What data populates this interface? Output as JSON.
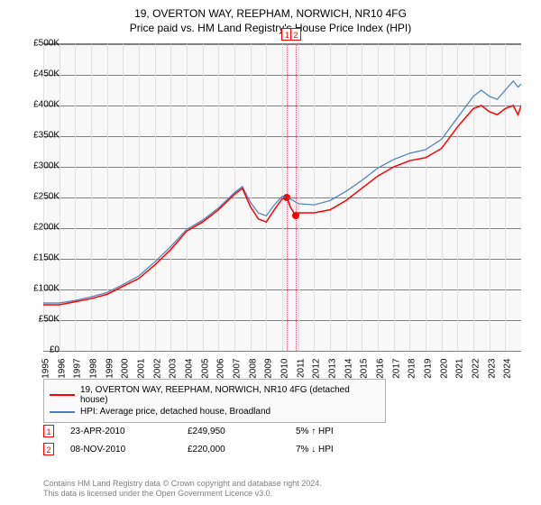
{
  "title": "19, OVERTON WAY, REEPHAM, NORWICH, NR10 4FG",
  "subtitle": "Price paid vs. HM Land Registry's House Price Index (HPI)",
  "chart": {
    "type": "line",
    "background_color": "#f8f8f8",
    "grid_color": "#808080",
    "x_years": [
      1995,
      1996,
      1997,
      1998,
      1999,
      2000,
      2001,
      2002,
      2003,
      2004,
      2005,
      2006,
      2007,
      2008,
      2009,
      2010,
      2011,
      2012,
      2013,
      2014,
      2015,
      2016,
      2017,
      2018,
      2019,
      2020,
      2021,
      2022,
      2023,
      2024
    ],
    "xlim_min": 1995,
    "xlim_max": 2025,
    "y_ticks": [
      0,
      50000,
      100000,
      150000,
      200000,
      250000,
      300000,
      350000,
      400000,
      450000,
      500000
    ],
    "y_labels": [
      "£0",
      "£50K",
      "£100K",
      "£150K",
      "£200K",
      "£250K",
      "£300K",
      "£350K",
      "£400K",
      "£450K",
      "£500K"
    ],
    "ylim_min": 0,
    "ylim_max": 500000,
    "label_fontsize": 10,
    "series_red": {
      "color": "#ff0000",
      "line_width": 1.5,
      "label": "19, OVERTON WAY, REEPHAM, NORWICH, NR10 4FG (detached house)",
      "points": [
        [
          1995,
          75000
        ],
        [
          1996,
          75000
        ],
        [
          1997,
          80000
        ],
        [
          1998,
          85000
        ],
        [
          1999,
          92000
        ],
        [
          2000,
          105000
        ],
        [
          2001,
          118000
        ],
        [
          2002,
          140000
        ],
        [
          2003,
          165000
        ],
        [
          2004,
          195000
        ],
        [
          2005,
          210000
        ],
        [
          2006,
          230000
        ],
        [
          2007,
          255000
        ],
        [
          2007.5,
          265000
        ],
        [
          2008,
          235000
        ],
        [
          2008.5,
          215000
        ],
        [
          2009,
          210000
        ],
        [
          2009.5,
          230000
        ],
        [
          2010,
          248000
        ],
        [
          2010.3,
          249950
        ],
        [
          2010.5,
          235000
        ],
        [
          2010.85,
          220000
        ],
        [
          2011,
          225000
        ],
        [
          2012,
          225000
        ],
        [
          2013,
          230000
        ],
        [
          2014,
          245000
        ],
        [
          2015,
          265000
        ],
        [
          2016,
          285000
        ],
        [
          2017,
          300000
        ],
        [
          2018,
          310000
        ],
        [
          2019,
          315000
        ],
        [
          2020,
          330000
        ],
        [
          2021,
          365000
        ],
        [
          2022,
          395000
        ],
        [
          2022.5,
          400000
        ],
        [
          2023,
          390000
        ],
        [
          2023.5,
          385000
        ],
        [
          2024,
          395000
        ],
        [
          2024.5,
          400000
        ],
        [
          2024.8,
          385000
        ],
        [
          2025,
          400000
        ]
      ]
    },
    "series_blue": {
      "color": "#4a7ebb",
      "line_width": 1.2,
      "label": "HPI: Average price, detached house, Broadland",
      "points": [
        [
          1995,
          78000
        ],
        [
          1996,
          78000
        ],
        [
          1997,
          82000
        ],
        [
          1998,
          88000
        ],
        [
          1999,
          95000
        ],
        [
          2000,
          108000
        ],
        [
          2001,
          122000
        ],
        [
          2002,
          145000
        ],
        [
          2003,
          170000
        ],
        [
          2004,
          198000
        ],
        [
          2005,
          213000
        ],
        [
          2006,
          233000
        ],
        [
          2007,
          258000
        ],
        [
          2007.5,
          268000
        ],
        [
          2008,
          242000
        ],
        [
          2008.5,
          225000
        ],
        [
          2009,
          220000
        ],
        [
          2009.5,
          238000
        ],
        [
          2010,
          252000
        ],
        [
          2010.5,
          248000
        ],
        [
          2011,
          240000
        ],
        [
          2012,
          238000
        ],
        [
          2013,
          245000
        ],
        [
          2014,
          260000
        ],
        [
          2015,
          278000
        ],
        [
          2016,
          298000
        ],
        [
          2017,
          312000
        ],
        [
          2018,
          322000
        ],
        [
          2019,
          328000
        ],
        [
          2020,
          345000
        ],
        [
          2021,
          380000
        ],
        [
          2022,
          415000
        ],
        [
          2022.5,
          425000
        ],
        [
          2023,
          415000
        ],
        [
          2023.5,
          410000
        ],
        [
          2024,
          425000
        ],
        [
          2024.5,
          440000
        ],
        [
          2024.8,
          430000
        ],
        [
          2025,
          435000
        ]
      ]
    },
    "events": [
      {
        "num": "1",
        "year_frac": 2010.31,
        "y": 249950
      },
      {
        "num": "2",
        "year_frac": 2010.85,
        "y": 220000
      }
    ]
  },
  "legend": {
    "border_color": "#b0b0b0",
    "rows": [
      {
        "color": "#ff0000",
        "label": "19, OVERTON WAY, REEPHAM, NORWICH, NR10 4FG (detached house)"
      },
      {
        "color": "#4a7ebb",
        "label": "HPI: Average price, detached house, Broadland"
      }
    ]
  },
  "sales": [
    {
      "num": "1",
      "date": "23-APR-2010",
      "price": "£249,950",
      "diff": "5% ↑ HPI"
    },
    {
      "num": "2",
      "date": "08-NOV-2010",
      "price": "£220,000",
      "diff": "7% ↓ HPI"
    }
  ],
  "attribution_line1": "Contains HM Land Registry data © Crown copyright and database right 2024.",
  "attribution_line2": "This data is licensed under the Open Government Licence v3.0."
}
